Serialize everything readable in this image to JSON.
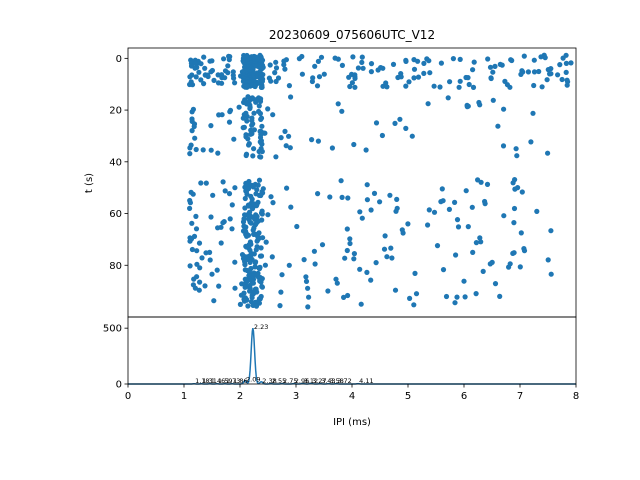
{
  "chart_data": [
    {
      "type": "scatter",
      "title": "20230609_075606UTC_V12",
      "xlabel": "",
      "ylabel": "t (s)",
      "xlim": [
        0,
        8
      ],
      "ylim": [
        100,
        -4
      ],
      "y_ticks": [
        "0",
        "20",
        "40",
        "60",
        "80"
      ],
      "marker_color": "#1f77b4",
      "bands": [
        {
          "t_range": [
            -1,
            11
          ],
          "ipi_dense_range": [
            1.1,
            8.0
          ],
          "points_per_second": 28
        },
        {
          "t_range": [
            15,
            38
          ],
          "ipi_dense_range": [
            1.1,
            7.5
          ],
          "points_per_second": 5
        },
        {
          "t_range": [
            47,
            96
          ],
          "ipi_dense_range": [
            1.1,
            7.6
          ],
          "points_per_second": 7
        }
      ],
      "cluster_ipi_ms": 2.23
    },
    {
      "type": "line",
      "xlabel": "IPI (ms)",
      "ylabel": "",
      "xlim": [
        0,
        8
      ],
      "ylim": [
        0,
        600
      ],
      "x_ticks": [
        "0",
        "1",
        "2",
        "3",
        "4",
        "5",
        "6",
        "7",
        "8"
      ],
      "y_ticks": [
        "0",
        "500"
      ],
      "line_color": "#1f77b4",
      "peaks": [
        {
          "x": 1.18,
          "y": 2,
          "label": "1.18"
        },
        {
          "x": 1.31,
          "y": 2,
          "label": "1.31"
        },
        {
          "x": 1.46,
          "y": 2,
          "label": "1.46"
        },
        {
          "x": 1.59,
          "y": 2,
          "label": "1.59"
        },
        {
          "x": 1.73,
          "y": 2,
          "label": "1.73"
        },
        {
          "x": 1.86,
          "y": 2,
          "label": "1.86"
        },
        {
          "x": 2.09,
          "y": 30,
          "label": "2.09"
        },
        {
          "x": 2.23,
          "y": 500,
          "label": "2.23"
        },
        {
          "x": 2.38,
          "y": 20,
          "label": "2.38"
        },
        {
          "x": 2.55,
          "y": 3,
          "label": "2.55"
        },
        {
          "x": 2.75,
          "y": 3,
          "label": "2.75"
        },
        {
          "x": 2.96,
          "y": 3,
          "label": "2.96"
        },
        {
          "x": 3.12,
          "y": 5,
          "label": "3.12"
        },
        {
          "x": 3.27,
          "y": 6,
          "label": "3.27"
        },
        {
          "x": 3.43,
          "y": 3,
          "label": "3.43"
        },
        {
          "x": 3.58,
          "y": 3,
          "label": "3.58"
        },
        {
          "x": 3.72,
          "y": 3,
          "label": "3.72"
        },
        {
          "x": 4.11,
          "y": 3,
          "label": "4.11"
        }
      ]
    }
  ]
}
